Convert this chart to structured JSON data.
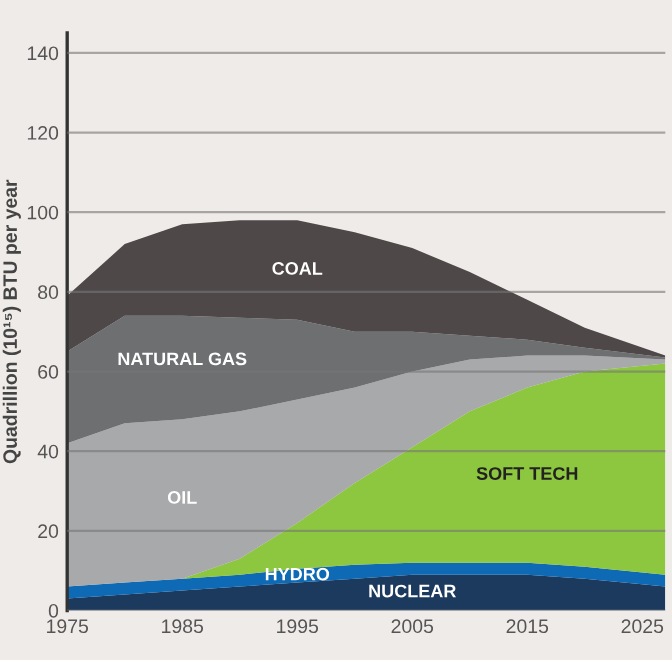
{
  "chart_data": {
    "type": "area",
    "stacked": true,
    "ylabel": "Quadrillion (10¹⁵) BTU per year",
    "x": [
      1975,
      1980,
      1985,
      1990,
      1995,
      2000,
      2005,
      2010,
      2015,
      2020,
      2027
    ],
    "series": [
      {
        "name": "NUCLEAR",
        "color": "#1b3a5e",
        "values": [
          3,
          4,
          5,
          6,
          7,
          8,
          9,
          9,
          9,
          8,
          6
        ]
      },
      {
        "name": "HYDRO",
        "color": "#0e6ab4",
        "values": [
          3,
          3,
          3,
          3,
          3.5,
          3.5,
          3,
          3,
          3,
          3,
          3
        ]
      },
      {
        "name": "SOFT TECH",
        "color": "#8dc63f",
        "values": [
          0,
          0,
          0,
          4,
          11.5,
          20.5,
          29,
          38,
          44,
          49,
          53
        ]
      },
      {
        "name": "OIL",
        "color": "#a7a9ab",
        "values": [
          36,
          40,
          40,
          37,
          31,
          24,
          19,
          13,
          8,
          4,
          1
        ]
      },
      {
        "name": "NATURAL GAS",
        "color": "#6d6f71",
        "values": [
          23,
          27,
          26,
          23.5,
          20,
          14,
          10,
          6,
          4,
          2,
          0.5
        ]
      },
      {
        "name": "COAL",
        "color": "#4e4849",
        "values": [
          14,
          18,
          23,
          24.5,
          25,
          25,
          21,
          16,
          10,
          5,
          0.5
        ]
      }
    ],
    "xlim": [
      1975,
      2027
    ],
    "xticks": [
      1975,
      1985,
      1995,
      2005,
      2015,
      2025
    ],
    "ylim": [
      0,
      145
    ],
    "yticks": [
      0,
      20,
      40,
      60,
      80,
      100,
      120,
      140
    ],
    "grid": "y",
    "legend": false
  }
}
